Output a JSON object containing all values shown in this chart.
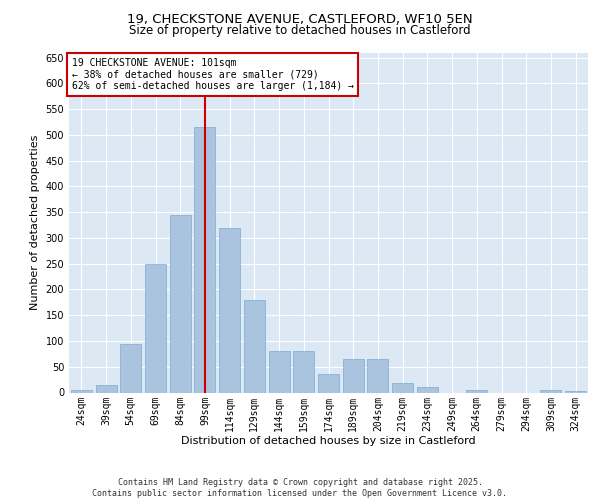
{
  "title_line1": "19, CHECKSTONE AVENUE, CASTLEFORD, WF10 5EN",
  "title_line2": "Size of property relative to detached houses in Castleford",
  "xlabel": "Distribution of detached houses by size in Castleford",
  "ylabel": "Number of detached properties",
  "categories": [
    "24sqm",
    "39sqm",
    "54sqm",
    "69sqm",
    "84sqm",
    "99sqm",
    "114sqm",
    "129sqm",
    "144sqm",
    "159sqm",
    "174sqm",
    "189sqm",
    "204sqm",
    "219sqm",
    "234sqm",
    "249sqm",
    "264sqm",
    "279sqm",
    "294sqm",
    "309sqm",
    "324sqm"
  ],
  "values": [
    5,
    15,
    95,
    250,
    345,
    515,
    320,
    180,
    80,
    80,
    35,
    65,
    65,
    18,
    10,
    0,
    5,
    0,
    0,
    5,
    2
  ],
  "bar_color": "#aac4e0",
  "bar_edge_color": "#7aacd0",
  "background_color": "#dce9f5",
  "grid_color": "#ffffff",
  "annotation_box_text": "19 CHECKSTONE AVENUE: 101sqm\n← 38% of detached houses are smaller (729)\n62% of semi-detached houses are larger (1,184) →",
  "vline_color": "#cc0000",
  "annotation_box_color": "#cc0000",
  "ylim": [
    0,
    660
  ],
  "footer_line1": "Contains HM Land Registry data © Crown copyright and database right 2025.",
  "footer_line2": "Contains public sector information licensed under the Open Government Licence v3.0.",
  "title_fontsize": 9.5,
  "subtitle_fontsize": 8.5,
  "tick_fontsize": 7,
  "label_fontsize": 8,
  "footer_fontsize": 6,
  "annotation_fontsize": 7
}
